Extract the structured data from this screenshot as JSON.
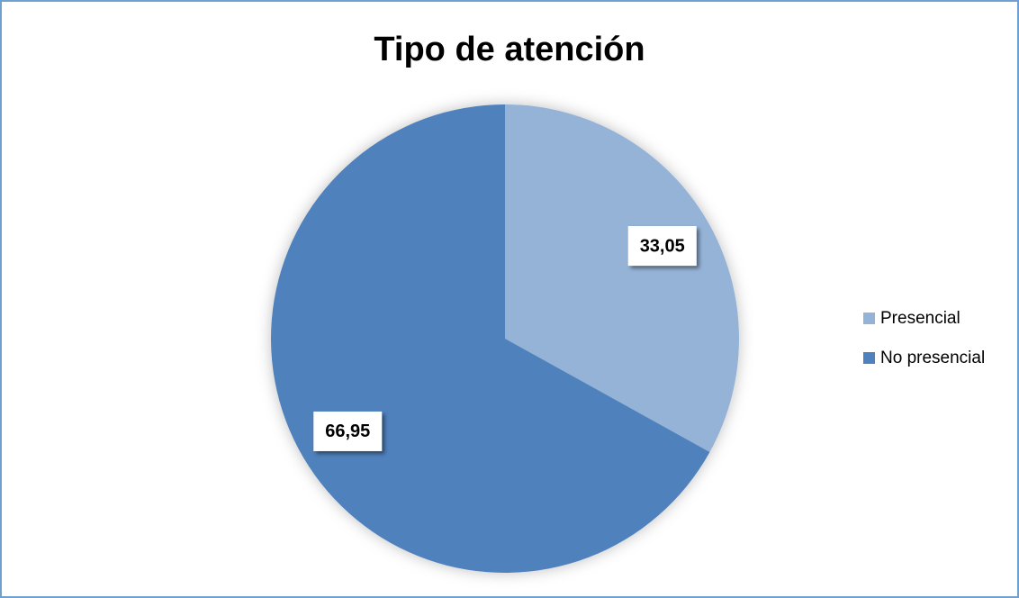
{
  "chart_data": {
    "type": "pie",
    "title": "Tipo de atención",
    "categories": [
      "Presencial",
      "No presencial"
    ],
    "values": [
      33.05,
      66.95
    ],
    "value_labels": [
      "33,05",
      "66,95"
    ],
    "colors": [
      "#95b3d7",
      "#4f81bd"
    ],
    "legend": "right"
  }
}
